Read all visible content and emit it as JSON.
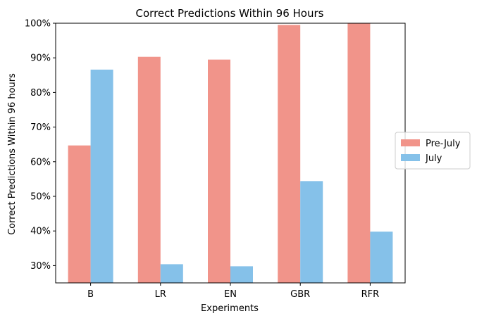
{
  "chart_data": {
    "type": "bar",
    "title": "Correct Predictions Within 96 Hours",
    "xlabel": "Experiments",
    "ylabel": "Correct Predictions Within 96 hours",
    "categories": [
      "B",
      "LR",
      "EN",
      "GBR",
      "RFR"
    ],
    "ylim": [
      25,
      100
    ],
    "yticks": [
      30,
      40,
      50,
      60,
      70,
      80,
      90,
      100
    ],
    "ytick_labels": [
      "30%",
      "40%",
      "50%",
      "60%",
      "70%",
      "80%",
      "90%",
      "100%"
    ],
    "series": [
      {
        "name": "Pre-July",
        "color": "#f1948a",
        "values": [
          64.7,
          90.3,
          89.5,
          99.5,
          100.0
        ]
      },
      {
        "name": "July",
        "color": "#85c1e9",
        "values": [
          86.6,
          30.4,
          29.8,
          54.4,
          39.8
        ]
      }
    ],
    "legend_position": "right",
    "grid": false
  }
}
